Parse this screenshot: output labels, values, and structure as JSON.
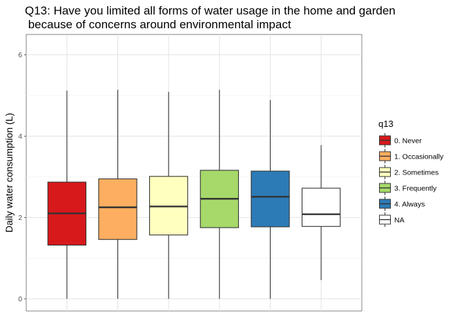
{
  "chart_data": {
    "type": "boxplot",
    "title": "Q13: Have you limited all forms of water usage in the home and garden\n because of concerns around environmental impact",
    "xlabel": "",
    "ylabel": "Daily water consumption (L)",
    "ylim": [
      -0.3,
      6.5
    ],
    "yticks": [
      0,
      2,
      4,
      6
    ],
    "grid": true,
    "legend": {
      "title": "q13",
      "position": "right"
    },
    "series": [
      {
        "name": "0. Never",
        "color": "#D7191C",
        "whisker_low": 0.0,
        "q1": 1.32,
        "median": 2.1,
        "q3": 2.87,
        "whisker_high": 5.12
      },
      {
        "name": "1. Occasionally",
        "color": "#FDAE61",
        "whisker_low": 0.0,
        "q1": 1.46,
        "median": 2.25,
        "q3": 2.95,
        "whisker_high": 5.14
      },
      {
        "name": "2. Sometimes",
        "color": "#FFFFBF",
        "whisker_low": 0.0,
        "q1": 1.57,
        "median": 2.27,
        "q3": 3.01,
        "whisker_high": 5.09
      },
      {
        "name": "3. Frequently",
        "color": "#A6D96A",
        "whisker_low": 0.0,
        "q1": 1.75,
        "median": 2.46,
        "q3": 3.16,
        "whisker_high": 5.14
      },
      {
        "name": "4. Always",
        "color": "#2C7BB6",
        "whisker_low": 0.0,
        "q1": 1.77,
        "median": 2.51,
        "q3": 3.14,
        "whisker_high": 4.89
      },
      {
        "name": "NA",
        "color": "#FFFFFF",
        "whisker_low": 0.46,
        "q1": 1.78,
        "median": 2.08,
        "q3": 2.72,
        "whisker_high": 3.78
      }
    ]
  }
}
